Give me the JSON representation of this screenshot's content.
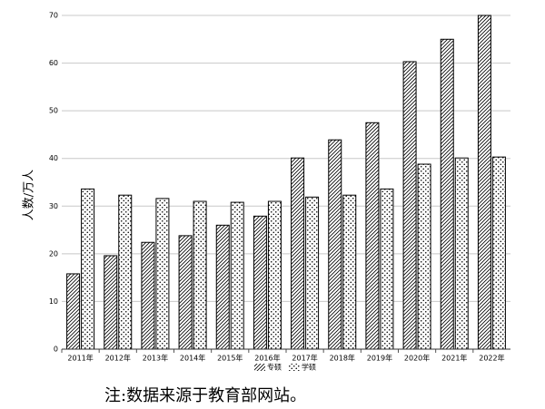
{
  "chart_data": {
    "type": "bar",
    "y_label": "人数/万人",
    "categories": [
      "2011年",
      "2012年",
      "2013年",
      "2014年",
      "2015年",
      "2016年",
      "2017年",
      "2018年",
      "2019年",
      "2020年",
      "2021年",
      "2022年"
    ],
    "series": [
      {
        "name": "专硕",
        "color": "#000000",
        "pattern": "hatch",
        "values": [
          15.8,
          19.6,
          22.4,
          23.8,
          26.0,
          27.9,
          40.1,
          43.9,
          47.5,
          60.3,
          65.0,
          70.0
        ]
      },
      {
        "name": "学硕",
        "color": "#000000",
        "pattern": "dots",
        "values": [
          33.6,
          32.3,
          31.6,
          31.0,
          30.8,
          31.0,
          31.9,
          32.3,
          33.6,
          38.8,
          40.1,
          40.3
        ]
      }
    ],
    "ylim": [
      0,
      70
    ],
    "yticks": [
      0,
      10,
      20,
      30,
      40,
      50,
      60,
      70
    ],
    "grid": true,
    "note": "注:数据来源于教育部网站。"
  }
}
